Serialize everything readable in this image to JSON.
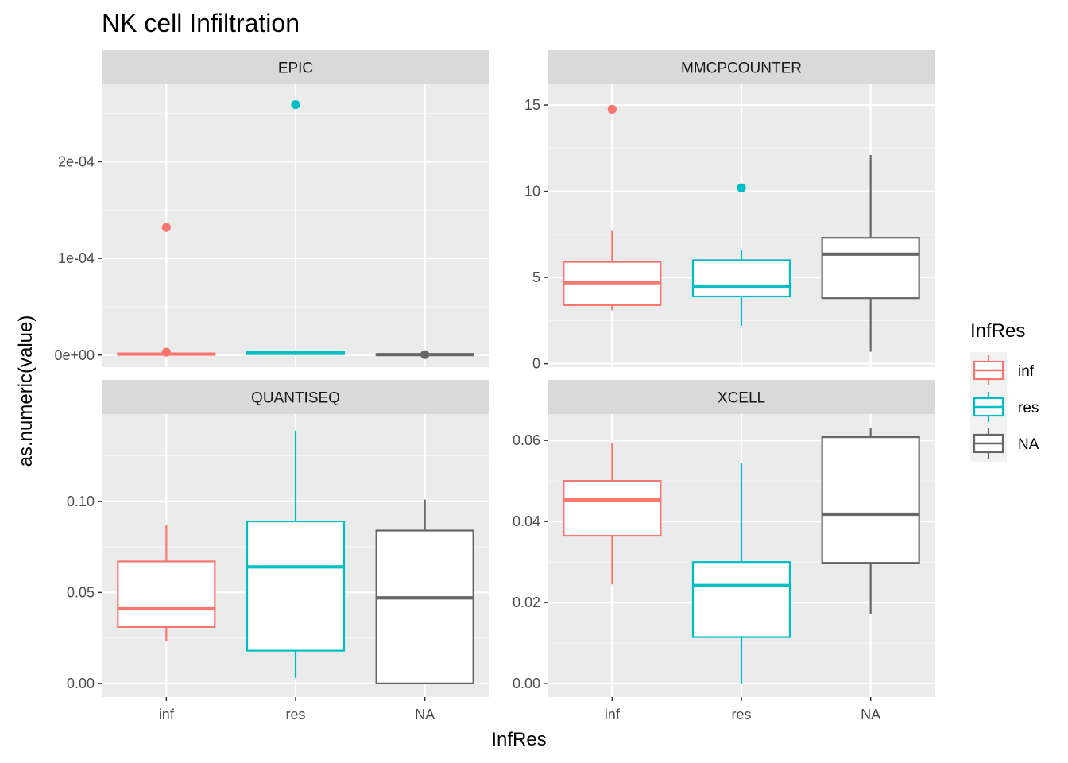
{
  "chart_data": {
    "type": "box",
    "title": "NK cell Infiltration",
    "xlabel": "InfRes",
    "ylabel": "as.numeric(value)",
    "categories": [
      "inf",
      "res",
      "NA"
    ],
    "legend": {
      "title": "InfRes",
      "position": "right",
      "entries": [
        {
          "label": "inf",
          "color": "#F8766D"
        },
        {
          "label": "res",
          "color": "#00BFC4"
        },
        {
          "label": "NA",
          "color": "#666666"
        }
      ]
    },
    "panels": [
      {
        "name": "EPIC",
        "ylim": [
          -1.25e-05,
          0.00028
        ],
        "yticks": [
          0,
          0.0001,
          0.0002
        ],
        "ytick_labels": [
          "0e+00",
          "1e-04",
          "2e-04"
        ],
        "boxes": [
          {
            "category": "inf",
            "min": 0,
            "q1": 5e-07,
            "median": 1e-06,
            "q3": 1.5e-06,
            "max": 3e-06,
            "outliers": [
              0.000132,
              3e-06
            ]
          },
          {
            "category": "res",
            "min": 0,
            "q1": 1e-06,
            "median": 2e-06,
            "q3": 3e-06,
            "max": 5e-06,
            "outliers": [
              0.000259
            ]
          },
          {
            "category": "NA",
            "min": 0,
            "q1": 0,
            "median": 5e-07,
            "q3": 1e-06,
            "max": 1e-06,
            "outliers": [
              5e-07
            ]
          }
        ]
      },
      {
        "name": "MMCPCOUNTER",
        "ylim": [
          -0.2,
          16.2
        ],
        "yticks": [
          0,
          5,
          10,
          15
        ],
        "ytick_labels": [
          "0",
          "5",
          "10",
          "15"
        ],
        "boxes": [
          {
            "category": "inf",
            "min": 3.1,
            "q1": 3.4,
            "median": 4.7,
            "q3": 5.9,
            "max": 7.7,
            "outliers": [
              14.75
            ]
          },
          {
            "category": "res",
            "min": 2.2,
            "q1": 3.9,
            "median": 4.5,
            "q3": 6.0,
            "max": 6.6,
            "outliers": [
              10.2
            ]
          },
          {
            "category": "NA",
            "min": 0.7,
            "q1": 3.8,
            "median": 6.35,
            "q3": 7.3,
            "max": 12.1,
            "outliers": []
          }
        ]
      },
      {
        "name": "QUANTISEQ",
        "ylim": [
          -0.0075,
          0.148
        ],
        "yticks": [
          0,
          0.05,
          0.1
        ],
        "ytick_labels": [
          "0.00",
          "0.05",
          "0.10"
        ],
        "boxes": [
          {
            "category": "inf",
            "min": 0.023,
            "q1": 0.031,
            "median": 0.041,
            "q3": 0.067,
            "max": 0.087,
            "outliers": []
          },
          {
            "category": "res",
            "min": 0.003,
            "q1": 0.018,
            "median": 0.064,
            "q3": 0.089,
            "max": 0.139,
            "outliers": []
          },
          {
            "category": "NA",
            "min": 0.0,
            "q1": 0.0,
            "median": 0.047,
            "q3": 0.084,
            "max": 0.101,
            "outliers": []
          }
        ]
      },
      {
        "name": "XCELL",
        "ylim": [
          -0.0033,
          0.0665
        ],
        "yticks": [
          0,
          0.02,
          0.04,
          0.06
        ],
        "ytick_labels": [
          "0.00",
          "0.02",
          "0.04",
          "0.06"
        ],
        "boxes": [
          {
            "category": "inf",
            "min": 0.0245,
            "q1": 0.0365,
            "median": 0.0453,
            "q3": 0.05,
            "max": 0.0593,
            "outliers": []
          },
          {
            "category": "res",
            "min": 0.0,
            "q1": 0.0115,
            "median": 0.0242,
            "q3": 0.03,
            "max": 0.0545,
            "outliers": []
          },
          {
            "category": "NA",
            "min": 0.0172,
            "q1": 0.0298,
            "median": 0.0418,
            "q3": 0.0608,
            "max": 0.063,
            "outliers": []
          }
        ]
      }
    ]
  }
}
